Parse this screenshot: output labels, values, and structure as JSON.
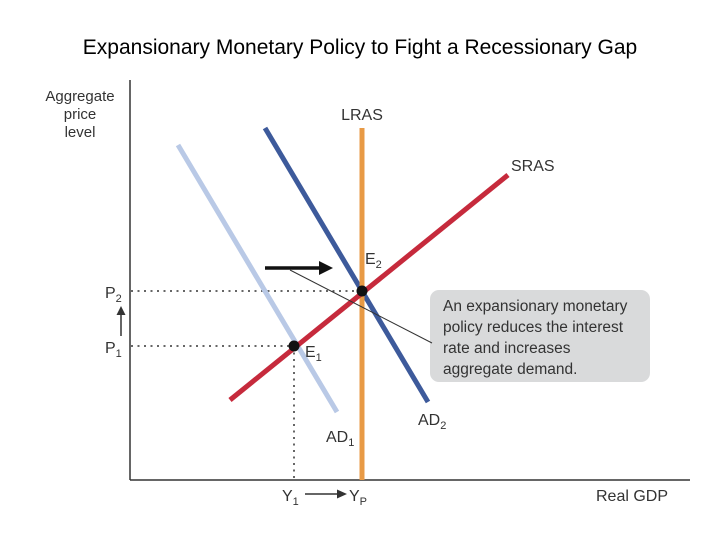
{
  "title": "Expansionary Monetary Policy to Fight a Recessionary Gap",
  "axes": {
    "y_label_lines": [
      "Aggregate",
      "price",
      "level"
    ],
    "x_label": "Real GDP"
  },
  "curves": {
    "lras": "LRAS",
    "sras": "SRAS",
    "ad1": {
      "base": "AD",
      "sub": "1"
    },
    "ad2": {
      "base": "AD",
      "sub": "2"
    }
  },
  "points": {
    "e1": {
      "base": "E",
      "sub": "1"
    },
    "e2": {
      "base": "E",
      "sub": "2"
    }
  },
  "price_levels": {
    "p1": {
      "base": "P",
      "sub": "1"
    },
    "p2": {
      "base": "P",
      "sub": "2"
    }
  },
  "output_levels": {
    "y1": {
      "base": "Y",
      "sub": "1"
    },
    "yp": {
      "base": "Y",
      "sub": "P"
    }
  },
  "annotation_lines": [
    "An expansionary monetary",
    "policy reduces the interest",
    "rate and increases",
    "aggregate demand."
  ],
  "colors": {
    "ad1": "#b9c9e6",
    "ad2": "#3d5a9b",
    "lras": "#e89a45",
    "sras": "#c62a3c",
    "annotation_box": "#d9dadb"
  }
}
